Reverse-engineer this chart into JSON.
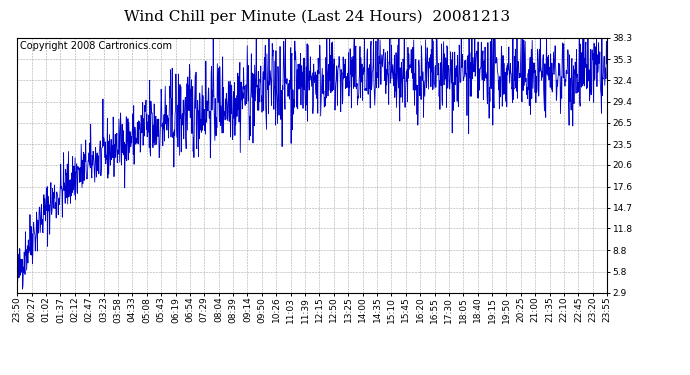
{
  "title": "Wind Chill per Minute (Last 24 Hours)  20081213",
  "copyright": "Copyright 2008 Cartronics.com",
  "line_color": "#0000cc",
  "background_color": "#ffffff",
  "plot_bg_color": "#ffffff",
  "grid_color": "#aaaaaa",
  "yticks": [
    2.9,
    5.8,
    8.8,
    11.8,
    14.7,
    17.6,
    20.6,
    23.5,
    26.5,
    29.4,
    32.4,
    35.3,
    38.3
  ],
  "xtick_labels": [
    "23:50",
    "00:27",
    "01:02",
    "01:37",
    "02:12",
    "02:47",
    "03:23",
    "03:58",
    "04:33",
    "05:08",
    "05:43",
    "06:19",
    "06:54",
    "07:29",
    "08:04",
    "08:39",
    "09:14",
    "09:50",
    "10:26",
    "11:03",
    "11:39",
    "12:15",
    "12:50",
    "13:25",
    "14:00",
    "14:35",
    "15:10",
    "15:45",
    "16:20",
    "16:55",
    "17:30",
    "18:05",
    "18:40",
    "19:15",
    "19:50",
    "20:25",
    "21:00",
    "21:35",
    "22:10",
    "22:45",
    "23:20",
    "23:55"
  ],
  "ymin": 2.9,
  "ymax": 38.3,
  "title_fontsize": 11,
  "copyright_fontsize": 7,
  "tick_fontsize": 6.5,
  "line_width": 0.6
}
